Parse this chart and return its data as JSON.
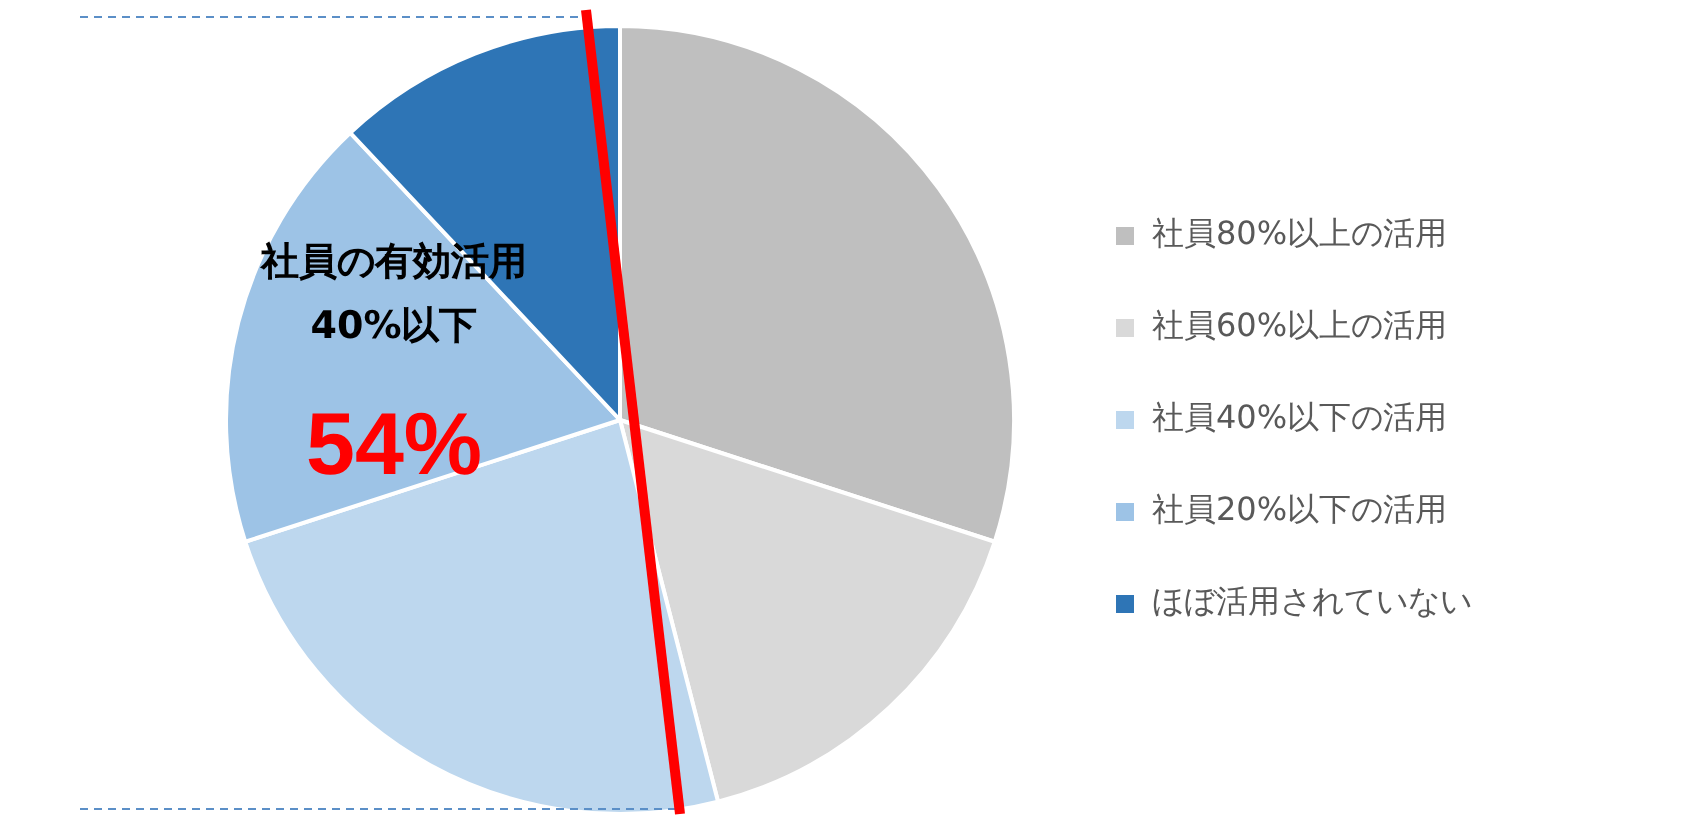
{
  "chart_data": {
    "type": "pie",
    "categories": [
      "社員80%以上の活用",
      "社員60%以上の活用",
      "社員40%以下の活用",
      "社員20%以下の活用",
      "ほぼ活用されていない"
    ],
    "values": [
      30,
      16,
      24,
      18,
      12
    ],
    "colors": [
      "#bfbfbf",
      "#d9d9d9",
      "#bdd7ee",
      "#9dc3e6",
      "#2e75b6"
    ],
    "annotations": [
      "社員の有効活用",
      "40%以下",
      "54%"
    ],
    "legend": "right"
  }
}
